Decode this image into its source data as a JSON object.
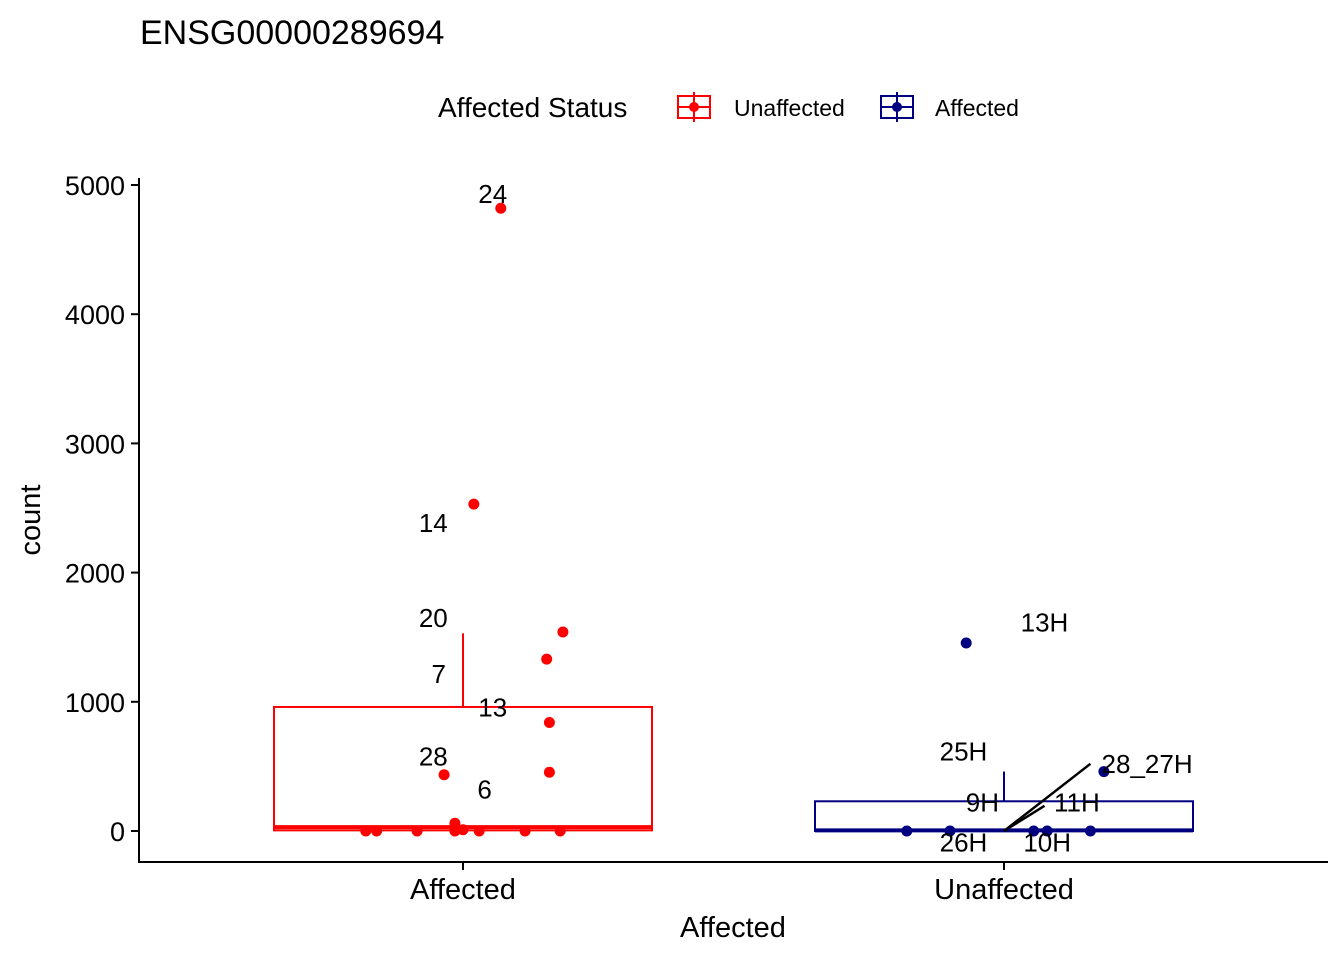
{
  "chart_data": {
    "type": "box",
    "title": "ENSG00000289694",
    "xlabel": "Affected",
    "ylabel": "count",
    "ylim": [
      -230,
      5060
    ],
    "y_ticks": [
      0,
      1000,
      2000,
      3000,
      4000,
      5000
    ],
    "y_tick_labels": [
      "0",
      "1000",
      "2000",
      "3000",
      "4000",
      "5000"
    ],
    "categories": [
      "Affected",
      "Unaffected"
    ],
    "legend": {
      "title": "Affected Status",
      "position": "top",
      "entries": [
        {
          "label": "Unaffected",
          "color": "#FF0000"
        },
        {
          "label": "Affected",
          "color": "#000080"
        }
      ]
    },
    "grid": false,
    "boxes": [
      {
        "category": "Affected",
        "color": "#FF0000",
        "q1": 5,
        "median": 30,
        "q3": 960,
        "whisker_low": 0,
        "whisker_high": 1530
      },
      {
        "category": "Unaffected",
        "color": "#000080",
        "q1": 0,
        "median": 5,
        "q3": 230,
        "whisker_low": 0,
        "whisker_high": 460
      }
    ],
    "points": [
      {
        "category": "Affected",
        "offset": 0.14,
        "y": 4820
      },
      {
        "category": "Affected",
        "offset": 0.04,
        "y": 2530
      },
      {
        "category": "Affected",
        "offset": 0.37,
        "y": 1540
      },
      {
        "category": "Affected",
        "offset": 0.31,
        "y": 1330
      },
      {
        "category": "Affected",
        "offset": 0.32,
        "y": 840
      },
      {
        "category": "Affected",
        "offset": 0.32,
        "y": 455
      },
      {
        "category": "Affected",
        "offset": -0.07,
        "y": 435
      },
      {
        "category": "Affected",
        "offset": -0.36,
        "y": 0
      },
      {
        "category": "Affected",
        "offset": -0.32,
        "y": 0
      },
      {
        "category": "Affected",
        "offset": -0.17,
        "y": 0
      },
      {
        "category": "Affected",
        "offset": -0.03,
        "y": 0
      },
      {
        "category": "Affected",
        "offset": -0.03,
        "y": 60
      },
      {
        "category": "Affected",
        "offset": 0.0,
        "y": 10
      },
      {
        "category": "Affected",
        "offset": 0.06,
        "y": 0
      },
      {
        "category": "Affected",
        "offset": 0.23,
        "y": 0
      },
      {
        "category": "Affected",
        "offset": 0.36,
        "y": 0
      },
      {
        "category": "Unaffected",
        "offset": -0.36,
        "y": 0
      },
      {
        "category": "Unaffected",
        "offset": -0.2,
        "y": 0
      },
      {
        "category": "Unaffected",
        "offset": 0.11,
        "y": 0
      },
      {
        "category": "Unaffected",
        "offset": 0.16,
        "y": 0
      },
      {
        "category": "Unaffected",
        "offset": 0.32,
        "y": 0
      },
      {
        "category": "Unaffected",
        "offset": 0.37,
        "y": 460
      },
      {
        "category": "Unaffected",
        "offset": -0.14,
        "y": 1455
      }
    ],
    "annotations": [
      {
        "text": "24",
        "category": "Affected",
        "offset": 0.11,
        "y": 4930
      },
      {
        "text": "14",
        "category": "Affected",
        "offset": -0.11,
        "y": 2385
      },
      {
        "text": "20",
        "category": "Affected",
        "offset": -0.11,
        "y": 1650
      },
      {
        "text": "7",
        "category": "Affected",
        "offset": -0.09,
        "y": 1215
      },
      {
        "text": "13",
        "category": "Affected",
        "offset": 0.11,
        "y": 955
      },
      {
        "text": "28",
        "category": "Affected",
        "offset": -0.11,
        "y": 575
      },
      {
        "text": "6",
        "category": "Affected",
        "offset": 0.08,
        "y": 320
      },
      {
        "text": "13H",
        "category": "Unaffected",
        "offset": 0.15,
        "y": 1615
      },
      {
        "text": "25H",
        "category": "Unaffected",
        "offset": -0.15,
        "y": 615
      },
      {
        "text": "28_27H",
        "category": "Unaffected",
        "offset": 0.53,
        "y": 520
      },
      {
        "text": "9H",
        "category": "Unaffected",
        "offset": -0.08,
        "y": 220
      },
      {
        "text": "11H",
        "category": "Unaffected",
        "offset": 0.27,
        "y": 220
      },
      {
        "text": "26H",
        "category": "Unaffected",
        "offset": -0.15,
        "y": -90
      },
      {
        "text": "10H",
        "category": "Unaffected",
        "offset": 0.16,
        "y": -90
      }
    ],
    "leader_lines": [
      {
        "category": "Unaffected",
        "from_offset": 0.0,
        "from_y": 0,
        "to_offset": 0.32,
        "to_y": 520
      },
      {
        "category": "Unaffected",
        "from_offset": 0.0,
        "from_y": 0,
        "to_offset": 0.15,
        "to_y": 195
      }
    ]
  }
}
